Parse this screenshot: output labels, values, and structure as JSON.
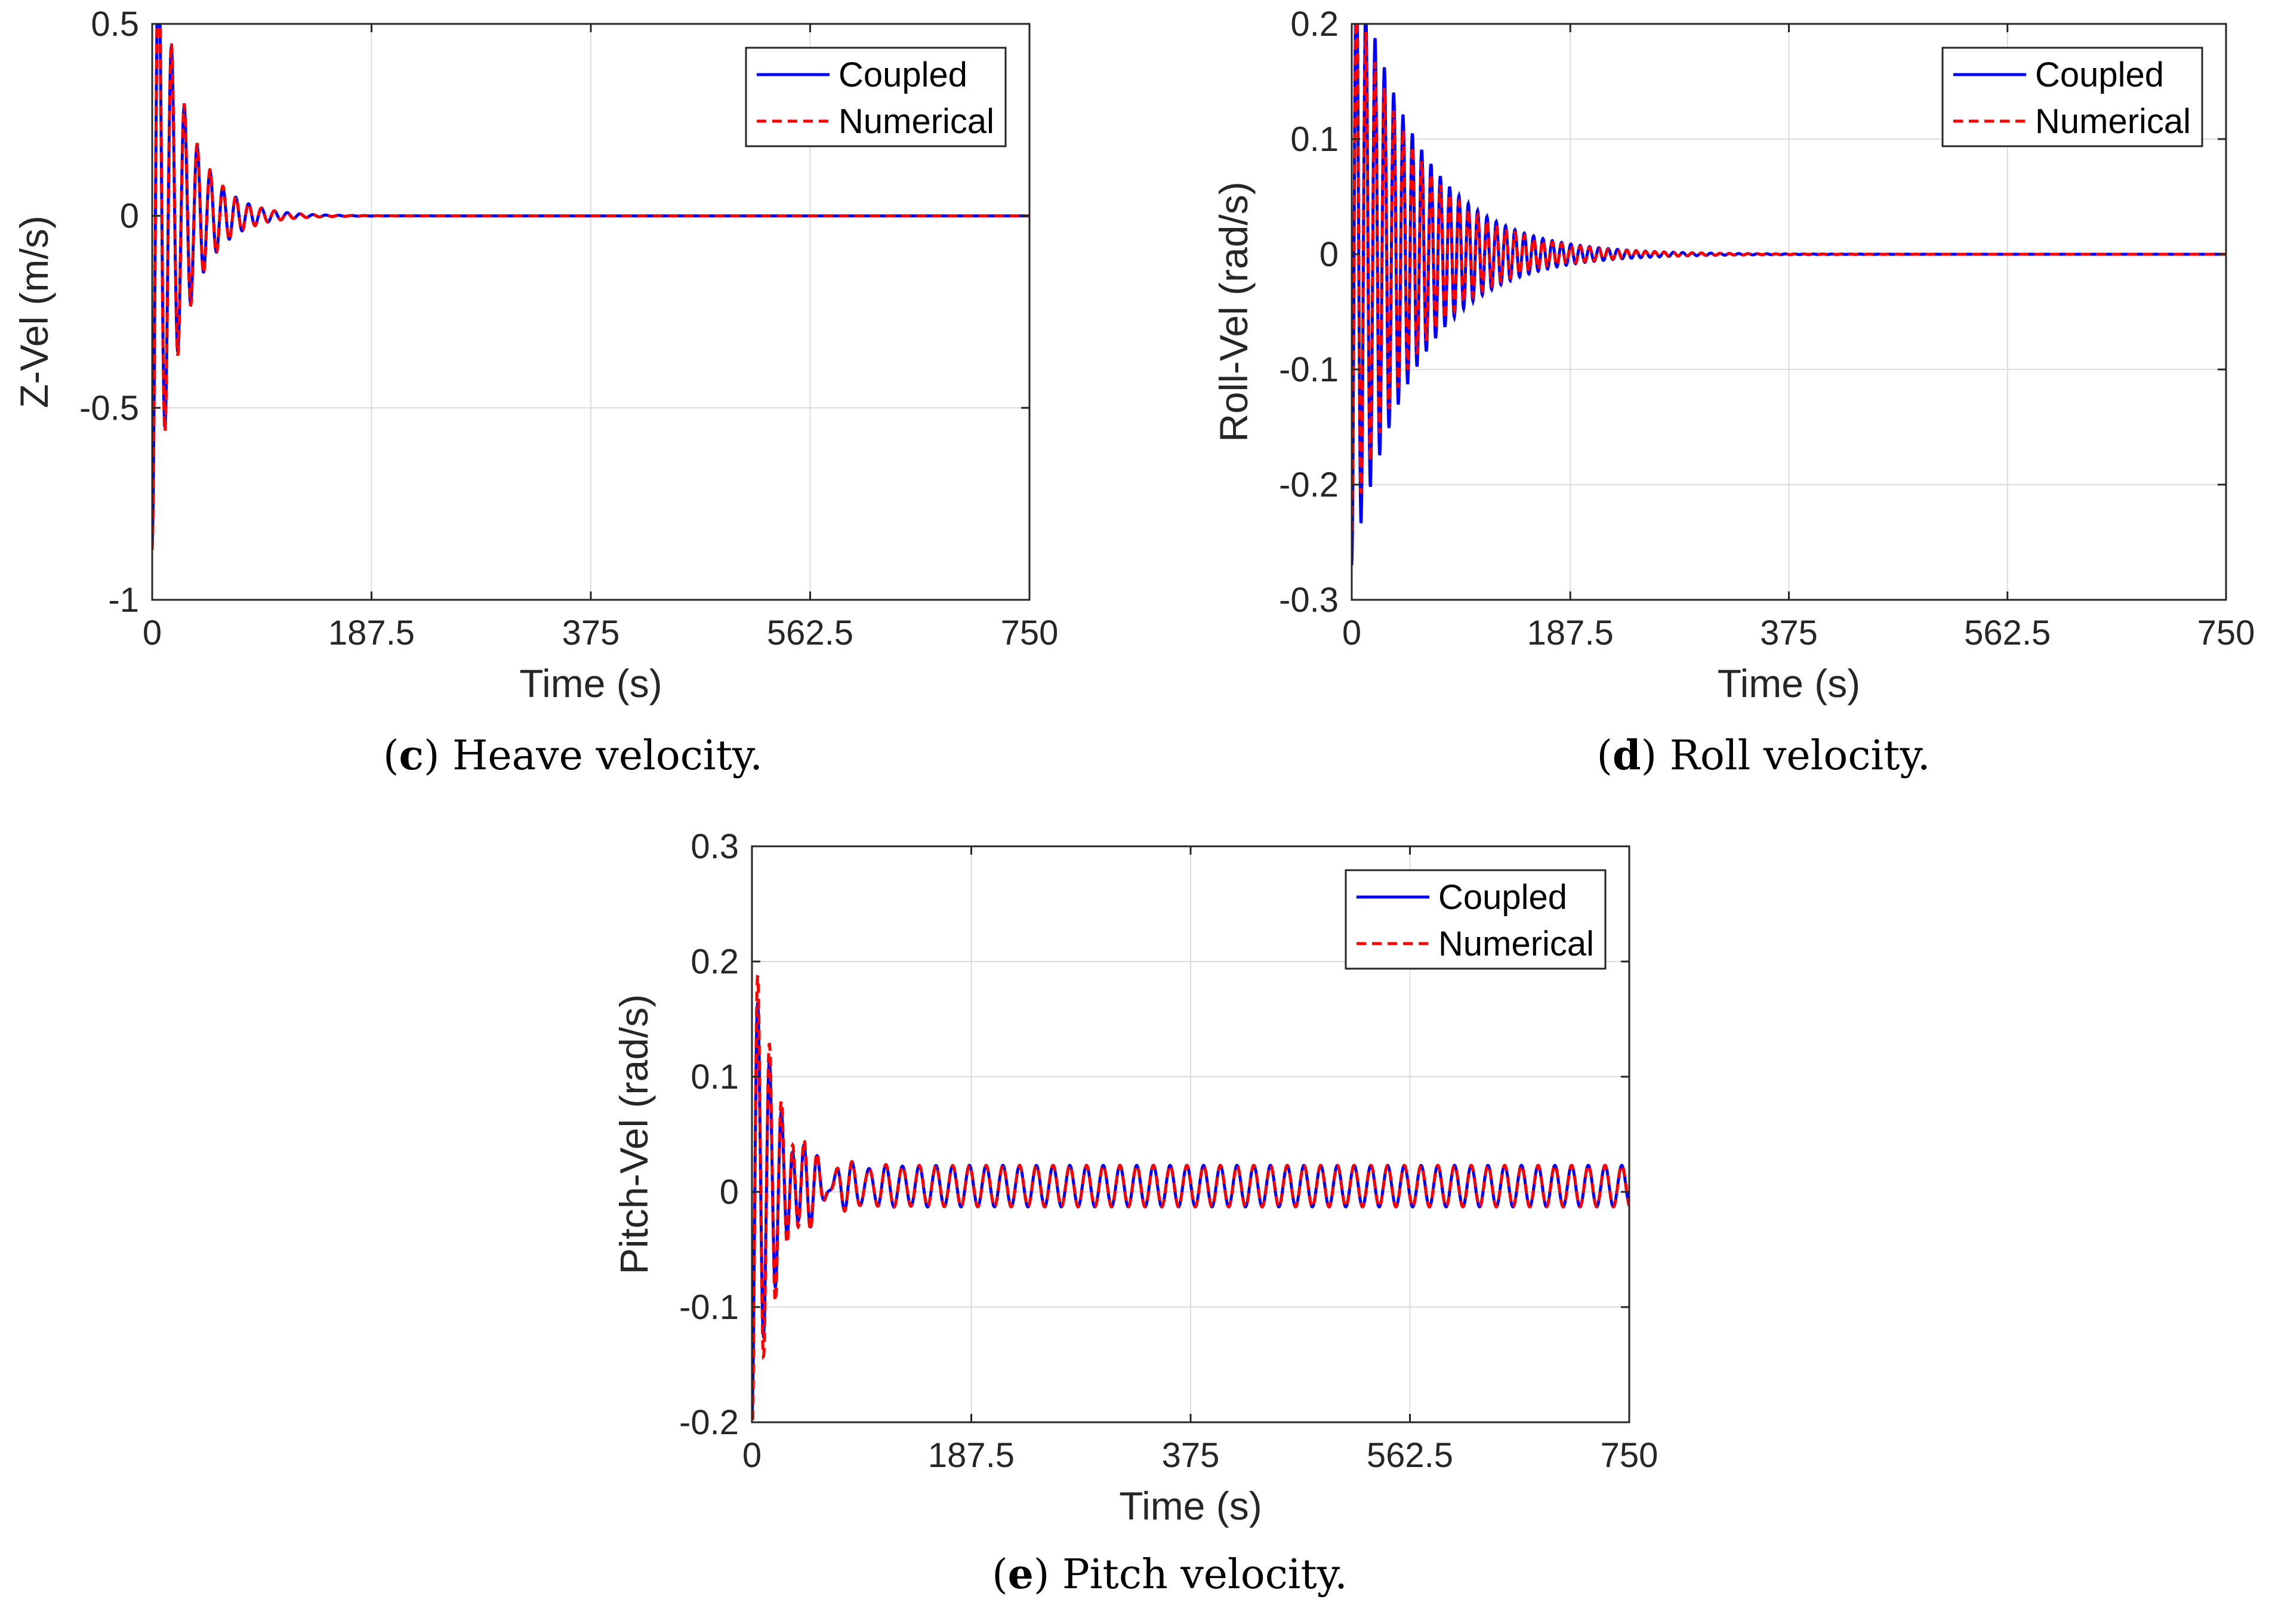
{
  "chart_data": [
    {
      "id": "c",
      "type": "line",
      "caption_letter": "c",
      "caption_text": " Heave velocity.",
      "xlabel": "Time (s)",
      "ylabel": "Z-Vel (m/s)",
      "xlim": [
        0,
        750
      ],
      "ylim": [
        -1,
        0.5
      ],
      "xticks": [
        0,
        187.5,
        375,
        562.5,
        750
      ],
      "xtick_labels": [
        "0",
        "187.5",
        "375",
        "562.5",
        "750"
      ],
      "yticks": [
        -1,
        -0.5,
        0,
        0.5
      ],
      "ytick_labels": [
        "-1",
        "-0.5",
        "0",
        "0.5"
      ],
      "grid": true,
      "legend": "top-right",
      "series": [
        {
          "name": "Coupled",
          "color": "#0000ff",
          "style": "solid",
          "amplitude": 0.85,
          "offset": 0,
          "period": 11,
          "decay": 25,
          "floor": 0,
          "end_period": 11
        },
        {
          "name": "Numerical",
          "color": "#ff0000",
          "style": "dashed",
          "amplitude": 0.87,
          "offset": 0,
          "period": 11,
          "decay": 25,
          "floor": 0,
          "end_period": 11
        }
      ]
    },
    {
      "id": "d",
      "type": "line",
      "caption_letter": "d",
      "caption_text": " Roll velocity.",
      "xlabel": "Time (s)",
      "ylabel": "Roll-Vel (rad/s)",
      "xlim": [
        0,
        750
      ],
      "ylim": [
        -0.3,
        0.2
      ],
      "xticks": [
        0,
        187.5,
        375,
        562.5,
        750
      ],
      "xtick_labels": [
        "0",
        "187.5",
        "375",
        "562.5",
        "750"
      ],
      "yticks": [
        -0.3,
        -0.2,
        -0.1,
        0,
        0.1,
        0.2
      ],
      "ytick_labels": [
        "-0.3",
        "-0.2",
        "-0.1",
        "0",
        "0.1",
        "0.2"
      ],
      "grid": true,
      "legend": "top-right",
      "series": [
        {
          "name": "Coupled",
          "color": "#0000ff",
          "style": "solid",
          "amplitude": 0.27,
          "offset": 0,
          "period": 8,
          "decay": 55,
          "floor": 0,
          "end_period": 8
        },
        {
          "name": "Numerical",
          "color": "#ff0000",
          "style": "dashed",
          "amplitude": 0.24,
          "offset": 0,
          "period": 8,
          "decay": 55,
          "floor": 0,
          "end_period": 8
        }
      ]
    },
    {
      "id": "e",
      "type": "line",
      "caption_letter": "e",
      "caption_text": " Pitch velocity.",
      "xlabel": "Time (s)",
      "ylabel": "Pitch-Vel (rad/s)",
      "xlim": [
        0,
        750
      ],
      "ylim": [
        -0.2,
        0.3
      ],
      "xticks": [
        0,
        187.5,
        375,
        562.5,
        750
      ],
      "xtick_labels": [
        "0",
        "187.5",
        "375",
        "562.5",
        "750"
      ],
      "yticks": [
        -0.2,
        -0.1,
        0,
        0.1,
        0.2,
        0.3
      ],
      "ytick_labels": [
        "-0.2",
        "-0.1",
        "0",
        "0.1",
        "0.2",
        "0.3"
      ],
      "grid": true,
      "legend": "top-right",
      "series": [
        {
          "name": "Coupled",
          "color": "#0000ff",
          "style": "solid",
          "amplitude": 0.2,
          "offset": 0.005,
          "period": 10,
          "decay": 22,
          "floor": 0.018,
          "end_period": 14.3
        },
        {
          "name": "Numerical",
          "color": "#ff0000",
          "style": "dashed",
          "amplitude": 0.23,
          "offset": 0.005,
          "period": 10,
          "decay": 22,
          "floor": 0.018,
          "end_period": 14.3
        }
      ]
    }
  ]
}
